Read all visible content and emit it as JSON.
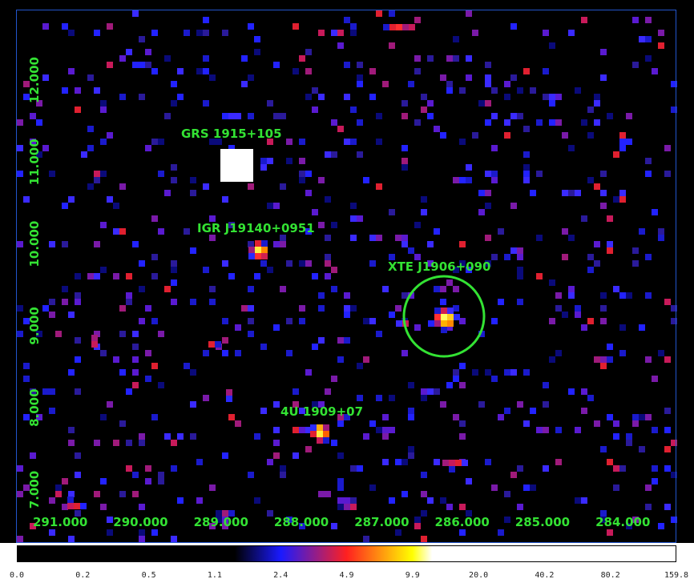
{
  "image": {
    "colors": {
      "background": "#000000",
      "frame": "#2255cc",
      "annotation": "#33e233",
      "region_circle": "#33e233"
    },
    "colormap": [
      "#000000",
      "#1a1aff",
      "#ff2020",
      "#ffff00",
      "#ffffff"
    ],
    "sources": [
      {
        "label": "GRS 1915+105",
        "ra": 289.0,
        "dec": 11.0
      },
      {
        "label": "IGR J19140+0951",
        "ra": 288.45,
        "dec": 9.9
      },
      {
        "label": "XTE J1906+090",
        "ra": 286.05,
        "dec": 9.0,
        "circled": true
      },
      {
        "label": "4U 1909+07",
        "ra": 287.6,
        "dec": 7.6
      }
    ],
    "ra_axis": {
      "ticks": [
        291.0,
        290.0,
        289.0,
        288.0,
        287.0,
        286.0,
        285.0,
        284.0
      ],
      "labels": [
        "291.000",
        "290.000",
        "289.000",
        "288.000",
        "287.000",
        "286.000",
        "285.000",
        "284.000"
      ]
    },
    "dec_axis": {
      "ticks": [
        12.0,
        11.0,
        10.0,
        9.0,
        8.0,
        7.0
      ],
      "labels": [
        "12.000",
        "11.000",
        "10.000",
        "9.000",
        "8.000",
        "7.000"
      ]
    }
  },
  "colorbar": {
    "labels": [
      "0.0",
      "0.2",
      "0.5",
      "1.1",
      "2.4",
      "4.9",
      "9.9",
      "20.0",
      "40.2",
      "80.2",
      "159.8"
    ]
  }
}
